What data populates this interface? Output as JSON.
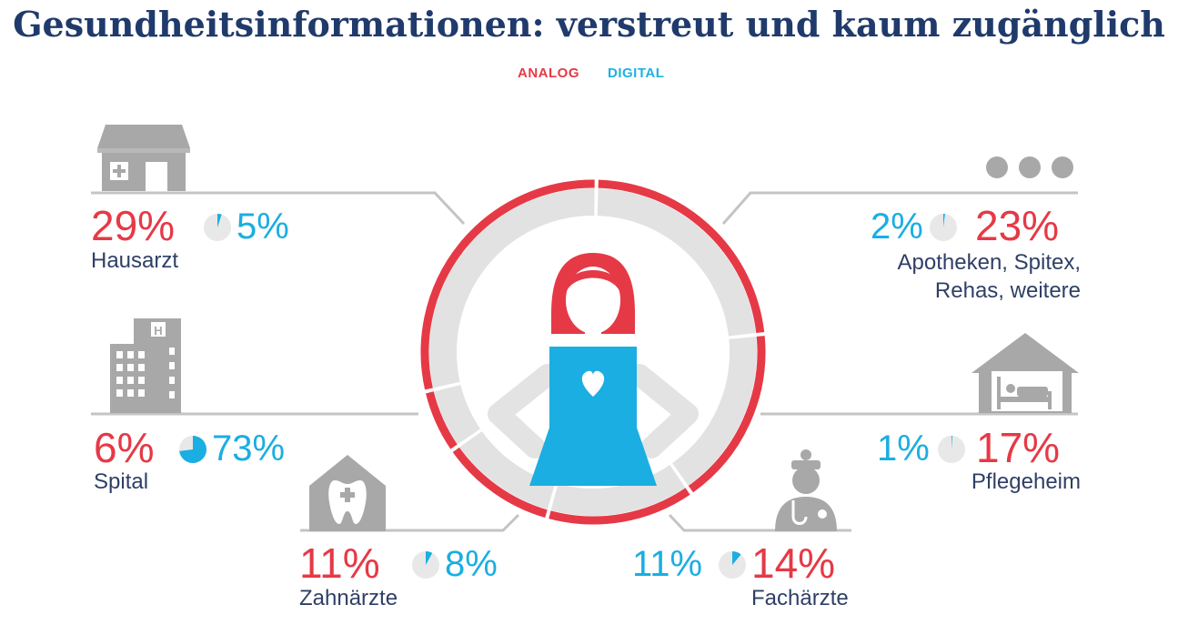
{
  "title": "Gesundheitsinformationen: verstreut und kaum zugänglich",
  "legend": {
    "analog": "ANALOG",
    "digital": "DIGITAL"
  },
  "colors": {
    "analog": "#e63946",
    "digital": "#1aaee2",
    "icon_gray": "#a8a8a8",
    "ring_gray": "#e2e2e2",
    "title": "#1f3a6b",
    "label": "#2f3f66"
  },
  "chart_data": {
    "type": "pie",
    "series": [
      {
        "name": "ANALOG",
        "color": "#e63946"
      },
      {
        "name": "DIGITAL",
        "color": "#1aaee2"
      }
    ],
    "categories": [
      {
        "key": "hausarzt",
        "label": "Hausarzt",
        "icon": "clinic-storefront-icon",
        "analog": 29,
        "digital": 5,
        "analog_text": "29%",
        "digital_text": "5%"
      },
      {
        "key": "spital",
        "label": "Spital",
        "icon": "hospital-building-icon",
        "analog": 6,
        "digital": 73,
        "analog_text": "6%",
        "digital_text": "73%"
      },
      {
        "key": "zahnaerzte",
        "label": "Zahnärzte",
        "icon": "tooth-house-icon",
        "analog": 11,
        "digital": 8,
        "analog_text": "11%",
        "digital_text": "8%"
      },
      {
        "key": "apotheken",
        "label_lines": [
          "Apotheken, Spitex,",
          "Rehas, weitere"
        ],
        "icon": "more-dots-icon",
        "analog": 23,
        "digital": 2,
        "analog_text": "23%",
        "digital_text": "2%"
      },
      {
        "key": "pflegeheim",
        "label": "Pflegeheim",
        "icon": "care-home-bed-icon",
        "analog": 17,
        "digital": 1,
        "analog_text": "17%",
        "digital_text": "1%"
      },
      {
        "key": "fachaerzte",
        "label": "Fachärzte",
        "icon": "doctor-specialist-icon",
        "analog": 14,
        "digital": 11,
        "analog_text": "14%",
        "digital_text": "11%"
      }
    ],
    "center_icon": "patient-woman-heart-icon"
  }
}
